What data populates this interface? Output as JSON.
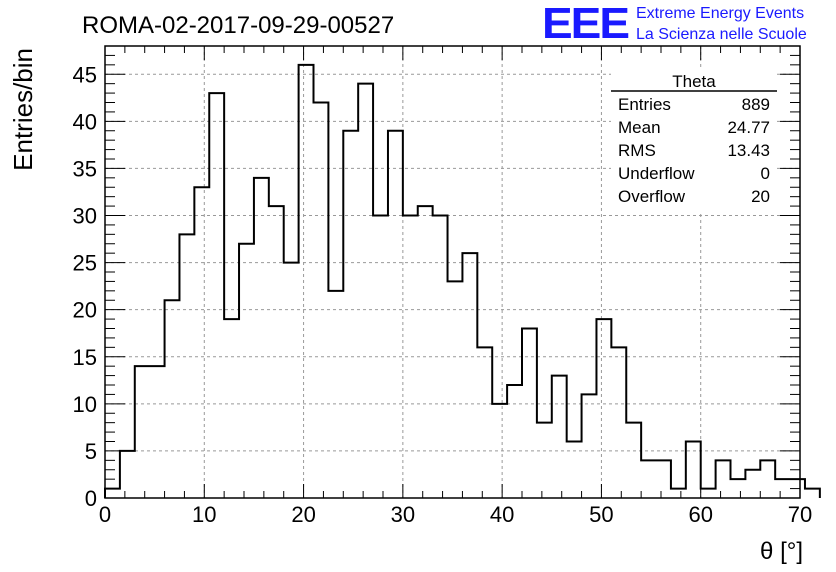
{
  "run_title": "ROMA-02-2017-09-29-00527",
  "logo": {
    "mark": "EEE",
    "line1": "Extreme Energy Events",
    "line2": "La Scienza nelle Scuole",
    "color": "#1a1aff"
  },
  "stats": {
    "title": "Theta",
    "rows": [
      {
        "label": "Entries",
        "value": "889"
      },
      {
        "label": "Mean",
        "value": "24.77"
      },
      {
        "label": "RMS",
        "value": "13.43"
      },
      {
        "label": "Underflow",
        "value": "0"
      },
      {
        "label": "Overflow",
        "value": "20"
      }
    ]
  },
  "chart_data": {
    "type": "bar",
    "style": "step-histogram",
    "xlabel": "θ [°]",
    "ylabel": "Entries/bin",
    "xlim": [
      0,
      70
    ],
    "ylim": [
      0,
      48
    ],
    "grid": true,
    "bin_width": 1.5,
    "x_start": 0,
    "x_ticks": [
      0,
      10,
      20,
      30,
      40,
      50,
      60,
      70
    ],
    "y_ticks": [
      0,
      5,
      10,
      15,
      20,
      25,
      30,
      35,
      40,
      45
    ],
    "values": [
      1,
      5,
      14,
      14,
      21,
      28,
      33,
      43,
      19,
      27,
      34,
      31,
      25,
      46,
      42,
      22,
      39,
      44,
      30,
      39,
      30,
      31,
      30,
      23,
      26,
      16,
      10,
      12,
      18,
      8,
      13,
      6,
      11,
      19,
      16,
      8,
      4,
      4,
      1,
      6,
      1,
      4,
      2,
      3,
      4,
      2,
      2,
      1
    ]
  }
}
